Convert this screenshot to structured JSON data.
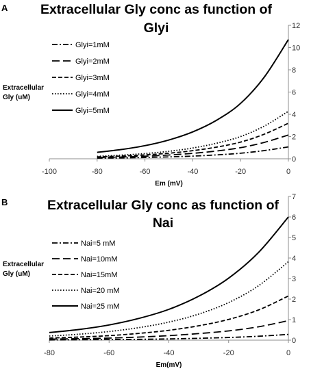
{
  "chart_data": [
    {
      "type": "line",
      "panel_label": "A",
      "title_lines": [
        "Extracellular Gly conc as function of",
        "Glyi"
      ],
      "xlabel": "Em (mV)",
      "ylabel_lines": [
        "Extracellular",
        "Gly (uM)"
      ],
      "xlim": [
        -100,
        0
      ],
      "ylim": [
        0,
        12
      ],
      "xticks": [
        -100,
        -80,
        -60,
        -40,
        -20,
        0
      ],
      "yticks": [
        0,
        2,
        4,
        6,
        8,
        10,
        12
      ],
      "y_axis_side": "right",
      "legend_position": "left",
      "x": [
        -80,
        -70,
        -60,
        -50,
        -40,
        -30,
        -20,
        -10,
        0
      ],
      "series": [
        {
          "name": "Glyi=1mM",
          "style": "dashdot",
          "values": [
            0.06,
            0.08,
            0.12,
            0.17,
            0.24,
            0.35,
            0.5,
            0.74,
            1.07
          ]
        },
        {
          "name": "Glyi=2mM",
          "style": "longdash",
          "values": [
            0.11,
            0.16,
            0.23,
            0.34,
            0.49,
            0.7,
            1.0,
            1.48,
            2.14
          ]
        },
        {
          "name": "Glyi=3mM",
          "style": "dash",
          "values": [
            0.17,
            0.24,
            0.35,
            0.5,
            0.73,
            1.05,
            1.5,
            2.22,
            3.2
          ]
        },
        {
          "name": "Glyi=4mM",
          "style": "dot",
          "values": [
            0.22,
            0.33,
            0.47,
            0.67,
            0.97,
            1.4,
            2.0,
            2.95,
            4.27
          ]
        },
        {
          "name": "Glyi=5mM",
          "style": "solid",
          "values": [
            0.58,
            0.83,
            1.18,
            1.69,
            2.42,
            3.47,
            4.98,
            7.37,
            10.72
          ]
        }
      ]
    },
    {
      "type": "line",
      "panel_label": "B",
      "title_lines": [
        "Extracellular Gly conc as function of",
        "Nai"
      ],
      "xlabel": "Em(mV)",
      "ylabel_lines": [
        "Extracellular",
        "Gly (uM)"
      ],
      "xlim": [
        -80,
        0
      ],
      "ylim": [
        0,
        7
      ],
      "xticks": [
        -80,
        -60,
        -40,
        -20,
        0
      ],
      "yticks": [
        0,
        1,
        2,
        3,
        4,
        5,
        6,
        7
      ],
      "y_axis_side": "right",
      "legend_position": "left",
      "x": [
        -80,
        -70,
        -60,
        -50,
        -40,
        -30,
        -20,
        -10,
        0
      ],
      "series": [
        {
          "name": "Nai=5 mM",
          "style": "dashdot",
          "values": [
            0.01,
            0.02,
            0.03,
            0.04,
            0.06,
            0.09,
            0.13,
            0.19,
            0.28
          ]
        },
        {
          "name": "Nai=10mM",
          "style": "longdash",
          "values": [
            0.05,
            0.07,
            0.1,
            0.15,
            0.22,
            0.32,
            0.45,
            0.65,
            0.95
          ]
        },
        {
          "name": "Nai=15mM",
          "style": "dash",
          "values": [
            0.1,
            0.15,
            0.22,
            0.33,
            0.48,
            0.7,
            1.01,
            1.47,
            2.15
          ]
        },
        {
          "name": "Nai=20 mM",
          "style": "dot",
          "values": [
            0.2,
            0.29,
            0.42,
            0.61,
            0.88,
            1.27,
            1.83,
            2.65,
            3.82
          ]
        },
        {
          "name": "Nai=25 mM",
          "style": "solid",
          "values": [
            0.37,
            0.52,
            0.74,
            1.06,
            1.5,
            2.14,
            3.02,
            4.27,
            6.0
          ]
        }
      ]
    }
  ]
}
